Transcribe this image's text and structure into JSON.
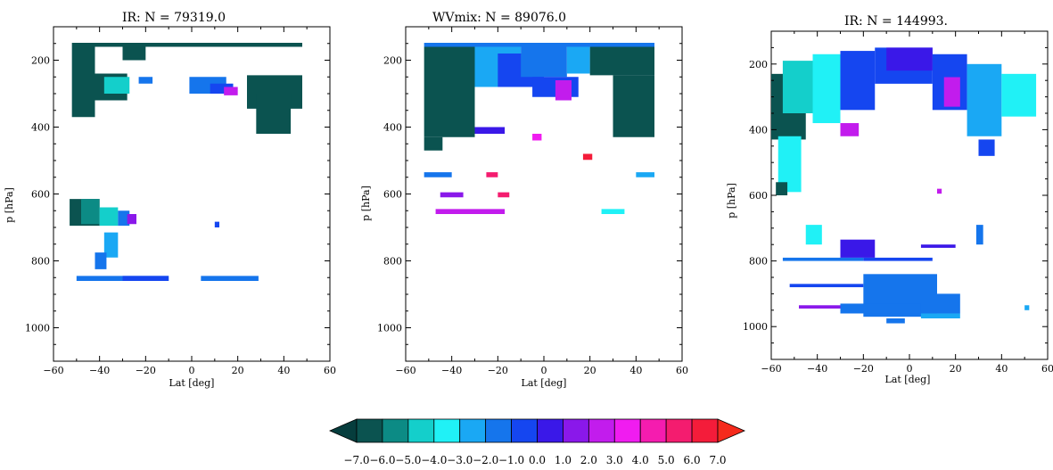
{
  "figure": {
    "panels": [
      {
        "title": "IR: N =       79319.0",
        "xlabel": "Lat [deg]",
        "ylabel": "p [hPa]"
      },
      {
        "title": "WVmix: N =       89076.0",
        "xlabel": "Lat [deg]",
        "ylabel": "p [hPa]"
      },
      {
        "title": "IR: N =       144993.",
        "xlabel": "Lat [deg]",
        "ylabel": "p [hPa]"
      }
    ],
    "colorbar": {
      "ticks": [
        "−7.0",
        "−6.0",
        "−5.0",
        "−4.0",
        "−3.0",
        "−2.0",
        "−1.0",
        "0.0",
        "1.0",
        "2.0",
        "3.0",
        "4.0",
        "5.0",
        "6.0",
        "7.0"
      ],
      "colors": [
        "#0b5350",
        "#0c8b85",
        "#14cfcb",
        "#20f1f6",
        "#1aa8f4",
        "#1575ec",
        "#1546f0",
        "#3a18e8",
        "#8a18ea",
        "#c21ced",
        "#f01cf0",
        "#f51caf",
        "#f41c6f",
        "#f41c3a"
      ],
      "under_color": "#063d3d",
      "over_color": "#f52a1c"
    }
  },
  "chart_data": [
    {
      "type": "heatmap",
      "title": "IR: N =       79319.0",
      "xlabel": "Lat [deg]",
      "ylabel": "p [hPa]",
      "xlim": [
        -60,
        60
      ],
      "ylim": [
        1100,
        100
      ],
      "xticks": [
        -60,
        -40,
        -20,
        0,
        20,
        40,
        60
      ],
      "yticks": [
        200,
        400,
        600,
        800,
        1000
      ],
      "regions": [
        {
          "lat": [
            -52,
            48
          ],
          "p": [
            148,
            160
          ],
          "value": -7
        },
        {
          "lat": [
            -52,
            -42
          ],
          "p": [
            160,
            370
          ],
          "value": -7
        },
        {
          "lat": [
            -42,
            -28
          ],
          "p": [
            240,
            320
          ],
          "value": -7
        },
        {
          "lat": [
            -38,
            -27
          ],
          "p": [
            250,
            300
          ],
          "value": -5
        },
        {
          "lat": [
            -30,
            -20
          ],
          "p": [
            160,
            200
          ],
          "value": -7
        },
        {
          "lat": [
            -23,
            -17
          ],
          "p": [
            250,
            270
          ],
          "value": -2
        },
        {
          "lat": [
            -1,
            15
          ],
          "p": [
            250,
            300
          ],
          "value": -2
        },
        {
          "lat": [
            8,
            18
          ],
          "p": [
            270,
            300
          ],
          "value": -1
        },
        {
          "lat": [
            14,
            20
          ],
          "p": [
            280,
            305
          ],
          "value": 2
        },
        {
          "lat": [
            24,
            48
          ],
          "p": [
            245,
            345
          ],
          "value": -7
        },
        {
          "lat": [
            28,
            43
          ],
          "p": [
            300,
            420
          ],
          "value": -7
        },
        {
          "lat": [
            -53,
            -40
          ],
          "p": [
            615,
            695
          ],
          "value": -7
        },
        {
          "lat": [
            -48,
            -40
          ],
          "p": [
            615,
            690
          ],
          "value": -6
        },
        {
          "lat": [
            -40,
            -32
          ],
          "p": [
            640,
            695
          ],
          "value": -5
        },
        {
          "lat": [
            -32,
            -27
          ],
          "p": [
            650,
            695
          ],
          "value": -2
        },
        {
          "lat": [
            -28,
            -24
          ],
          "p": [
            660,
            690
          ],
          "value": 1
        },
        {
          "lat": [
            -38,
            -32
          ],
          "p": [
            715,
            790
          ],
          "value": -3
        },
        {
          "lat": [
            -42,
            -37
          ],
          "p": [
            775,
            825
          ],
          "value": -2
        },
        {
          "lat": [
            -50,
            -10
          ],
          "p": [
            845,
            860
          ],
          "value": -2
        },
        {
          "lat": [
            -30,
            -10
          ],
          "p": [
            845,
            860
          ],
          "value": -1
        },
        {
          "lat": [
            4,
            29
          ],
          "p": [
            845,
            860
          ],
          "value": -2
        },
        {
          "lat": [
            10,
            12
          ],
          "p": [
            683,
            700
          ],
          "value": -1
        }
      ]
    },
    {
      "type": "heatmap",
      "title": "WVmix: N =       89076.0",
      "xlabel": "Lat [deg]",
      "ylabel": "p [hPa]",
      "xlim": [
        -60,
        60
      ],
      "ylim": [
        1100,
        100
      ],
      "xticks": [
        -60,
        -40,
        -20,
        0,
        20,
        40,
        60
      ],
      "yticks": [
        200,
        400,
        600,
        800,
        1000
      ],
      "regions": [
        {
          "lat": [
            -52,
            48
          ],
          "p": [
            148,
            160
          ],
          "value": -2
        },
        {
          "lat": [
            -52,
            -30
          ],
          "p": [
            160,
            430
          ],
          "value": -7
        },
        {
          "lat": [
            -52,
            -44
          ],
          "p": [
            430,
            470
          ],
          "value": -7
        },
        {
          "lat": [
            -30,
            -10
          ],
          "p": [
            160,
            280
          ],
          "value": -3
        },
        {
          "lat": [
            -20,
            0
          ],
          "p": [
            180,
            280
          ],
          "value": -1
        },
        {
          "lat": [
            -10,
            10
          ],
          "p": [
            160,
            250
          ],
          "value": -2
        },
        {
          "lat": [
            -5,
            15
          ],
          "p": [
            250,
            310
          ],
          "value": -1
        },
        {
          "lat": [
            5,
            12
          ],
          "p": [
            260,
            320
          ],
          "value": 2
        },
        {
          "lat": [
            10,
            20
          ],
          "p": [
            160,
            240
          ],
          "value": -3
        },
        {
          "lat": [
            20,
            48
          ],
          "p": [
            160,
            245
          ],
          "value": -7
        },
        {
          "lat": [
            30,
            48
          ],
          "p": [
            245,
            430
          ],
          "value": -7
        },
        {
          "lat": [
            -30,
            -17
          ],
          "p": [
            400,
            420
          ],
          "value": 0
        },
        {
          "lat": [
            -52,
            -40
          ],
          "p": [
            535,
            550
          ],
          "value": -2
        },
        {
          "lat": [
            -25,
            -20
          ],
          "p": [
            535,
            550
          ],
          "value": 5
        },
        {
          "lat": [
            -45,
            -35
          ],
          "p": [
            595,
            610
          ],
          "value": 1
        },
        {
          "lat": [
            -20,
            -15
          ],
          "p": [
            595,
            610
          ],
          "value": 5
        },
        {
          "lat": [
            -47,
            -17
          ],
          "p": [
            645,
            660
          ],
          "value": 2
        },
        {
          "lat": [
            17,
            21
          ],
          "p": [
            480,
            498
          ],
          "value": 6
        },
        {
          "lat": [
            40,
            48
          ],
          "p": [
            535,
            550
          ],
          "value": -3
        },
        {
          "lat": [
            25,
            35
          ],
          "p": [
            645,
            660
          ],
          "value": -4
        },
        {
          "lat": [
            -5,
            -1
          ],
          "p": [
            420,
            440
          ],
          "value": 3
        }
      ]
    },
    {
      "type": "heatmap",
      "title": "IR: N =       144993.",
      "xlabel": "Lat [deg]",
      "ylabel": "p [hPa]",
      "xlim": [
        -60,
        60
      ],
      "ylim": [
        1100,
        100
      ],
      "xticks": [
        -60,
        -40,
        -20,
        0,
        20,
        40,
        60
      ],
      "yticks": [
        200,
        400,
        600,
        800,
        1000
      ],
      "regions": [
        {
          "lat": [
            -60,
            -45
          ],
          "p": [
            230,
            430
          ],
          "value": -7
        },
        {
          "lat": [
            -55,
            -40
          ],
          "p": [
            190,
            350
          ],
          "value": -5
        },
        {
          "lat": [
            -42,
            -30
          ],
          "p": [
            170,
            380
          ],
          "value": -4
        },
        {
          "lat": [
            -30,
            -15
          ],
          "p": [
            160,
            340
          ],
          "value": -1
        },
        {
          "lat": [
            -15,
            10
          ],
          "p": [
            150,
            260
          ],
          "value": -1
        },
        {
          "lat": [
            -10,
            10
          ],
          "p": [
            150,
            220
          ],
          "value": 0
        },
        {
          "lat": [
            10,
            25
          ],
          "p": [
            170,
            340
          ],
          "value": -1
        },
        {
          "lat": [
            15,
            22
          ],
          "p": [
            240,
            330
          ],
          "value": 2
        },
        {
          "lat": [
            25,
            40
          ],
          "p": [
            200,
            420
          ],
          "value": -3
        },
        {
          "lat": [
            40,
            55
          ],
          "p": [
            230,
            360
          ],
          "value": -4
        },
        {
          "lat": [
            -57,
            -47
          ],
          "p": [
            420,
            590
          ],
          "value": -4
        },
        {
          "lat": [
            -58,
            -53
          ],
          "p": [
            560,
            600
          ],
          "value": -7
        },
        {
          "lat": [
            -30,
            -22
          ],
          "p": [
            380,
            420
          ],
          "value": 2
        },
        {
          "lat": [
            30,
            37
          ],
          "p": [
            430,
            480
          ],
          "value": -1
        },
        {
          "lat": [
            -45,
            -38
          ],
          "p": [
            690,
            750
          ],
          "value": -4
        },
        {
          "lat": [
            -30,
            -15
          ],
          "p": [
            735,
            790
          ],
          "value": 0
        },
        {
          "lat": [
            -55,
            -20
          ],
          "p": [
            790,
            800
          ],
          "value": -2
        },
        {
          "lat": [
            -20,
            10
          ],
          "p": [
            790,
            800
          ],
          "value": -1
        },
        {
          "lat": [
            5,
            20
          ],
          "p": [
            750,
            760
          ],
          "value": 0
        },
        {
          "lat": [
            -52,
            -20
          ],
          "p": [
            870,
            880
          ],
          "value": -1
        },
        {
          "lat": [
            -20,
            12
          ],
          "p": [
            840,
            970
          ],
          "value": -2
        },
        {
          "lat": [
            12,
            22
          ],
          "p": [
            900,
            960
          ],
          "value": -2
        },
        {
          "lat": [
            -48,
            -30
          ],
          "p": [
            935,
            945
          ],
          "value": 1
        },
        {
          "lat": [
            -30,
            5
          ],
          "p": [
            930,
            960
          ],
          "value": -2
        },
        {
          "lat": [
            5,
            22
          ],
          "p": [
            960,
            975
          ],
          "value": -3
        },
        {
          "lat": [
            -10,
            -2
          ],
          "p": [
            975,
            990
          ],
          "value": -2
        },
        {
          "lat": [
            12,
            14
          ],
          "p": [
            580,
            595
          ],
          "value": 2
        },
        {
          "lat": [
            50,
            52
          ],
          "p": [
            935,
            950
          ],
          "value": -3
        },
        {
          "lat": [
            29,
            32
          ],
          "p": [
            690,
            750
          ],
          "value": -2
        }
      ]
    }
  ]
}
